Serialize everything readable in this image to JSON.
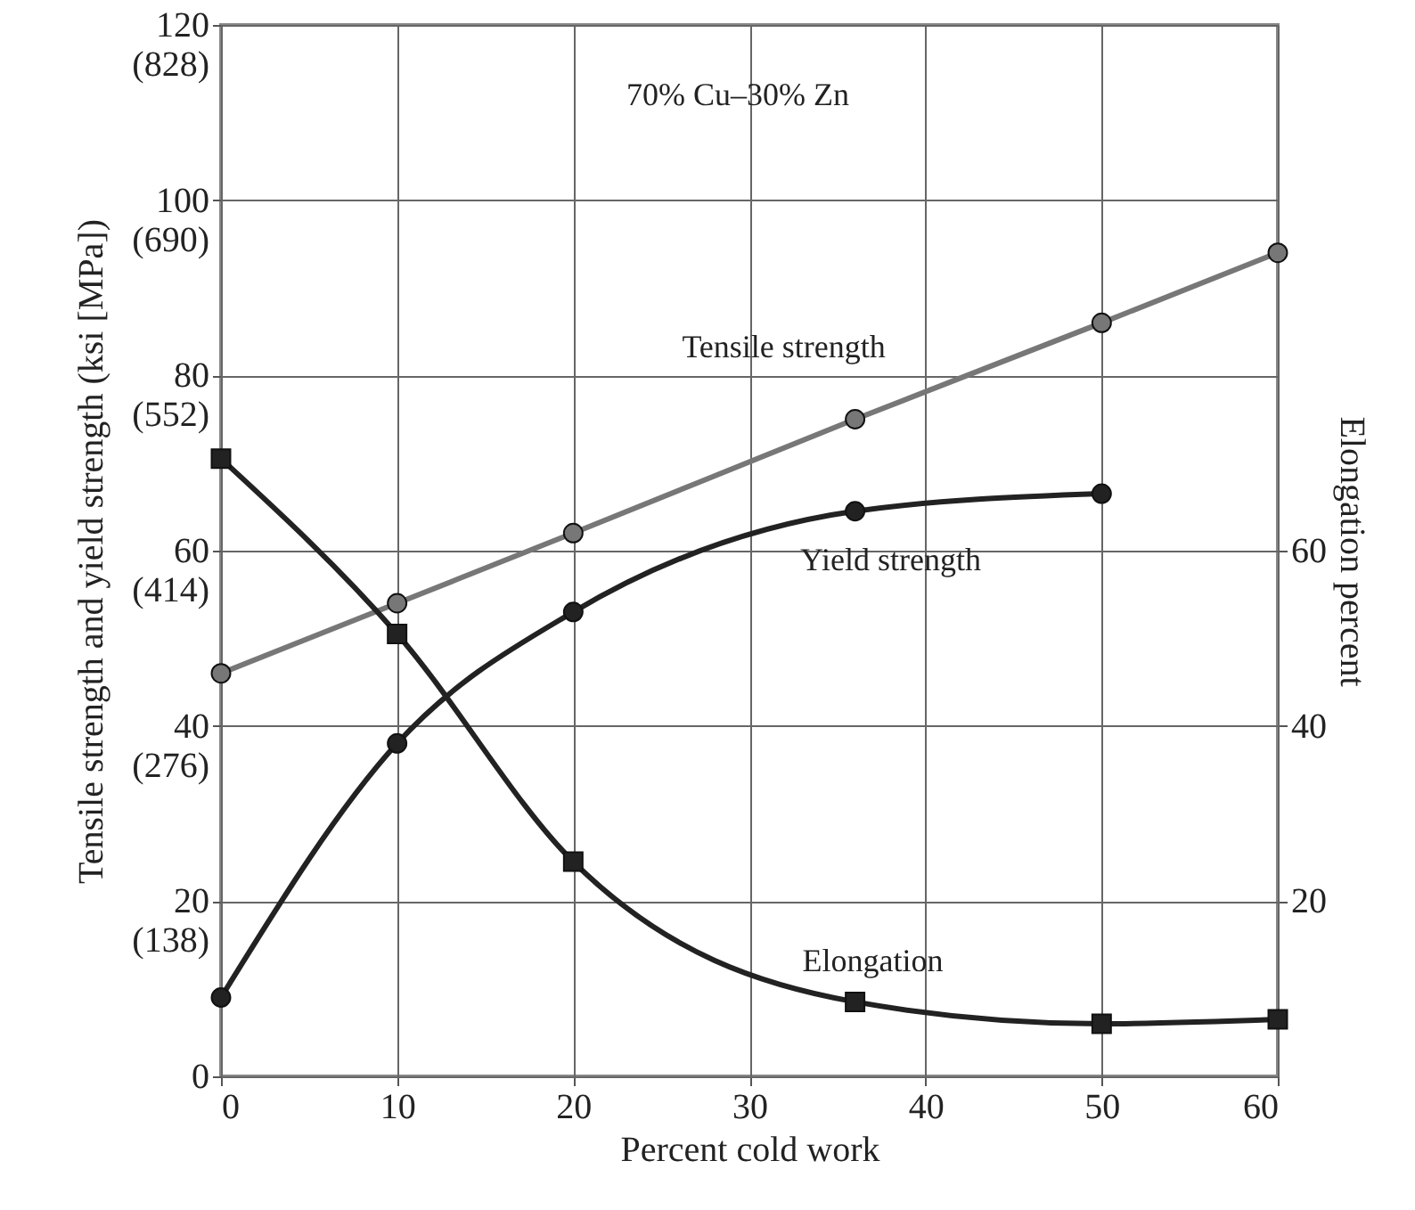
{
  "chart_data": {
    "type": "line",
    "annotations": [
      "70% Cu–30% Zn"
    ],
    "xlabel": "Percent cold work",
    "ylabel": "Tensile strength and yield strength (ksi [MPa])",
    "y2label": "Elongation percent",
    "xlim": [
      0,
      60
    ],
    "xticks": [
      0,
      10,
      20,
      30,
      40,
      50,
      60
    ],
    "ylim": [
      0,
      120
    ],
    "yticks": [
      0,
      20,
      40,
      60,
      80,
      100,
      120
    ],
    "y3lim": [
      0,
      828
    ],
    "y3ticks": [
      {
        "value": 138,
        "label": "(138)"
      },
      {
        "value": 276,
        "label": "(276)"
      },
      {
        "value": 414,
        "label": "(414)"
      },
      {
        "value": 552,
        "label": "(552)"
      },
      {
        "value": 690,
        "label": "(690)"
      },
      {
        "value": 828,
        "label": "(828)"
      }
    ],
    "y2lim": [
      0,
      120
    ],
    "y2ticks": [
      20,
      40,
      60
    ],
    "grid": true,
    "line_style": "solid",
    "series": [
      {
        "name": "Tensile strength",
        "color": "#777777",
        "marker": "circle",
        "x": [
          0,
          10,
          20,
          36,
          50,
          60
        ],
        "values": [
          46,
          54,
          62,
          75,
          86,
          94
        ]
      },
      {
        "name": "Yield strength",
        "color": "#222222",
        "marker": "circle",
        "x": [
          0,
          10,
          20,
          36,
          50
        ],
        "values": [
          9,
          38,
          53,
          64.5,
          66.5
        ]
      },
      {
        "name": "Elongation",
        "color": "#222222",
        "marker": "square",
        "axis": "y2",
        "x": [
          0,
          10,
          20,
          36,
          50,
          60
        ],
        "values": [
          70.5,
          50.5,
          24.5,
          8.5,
          6,
          6.5
        ]
      }
    ]
  }
}
